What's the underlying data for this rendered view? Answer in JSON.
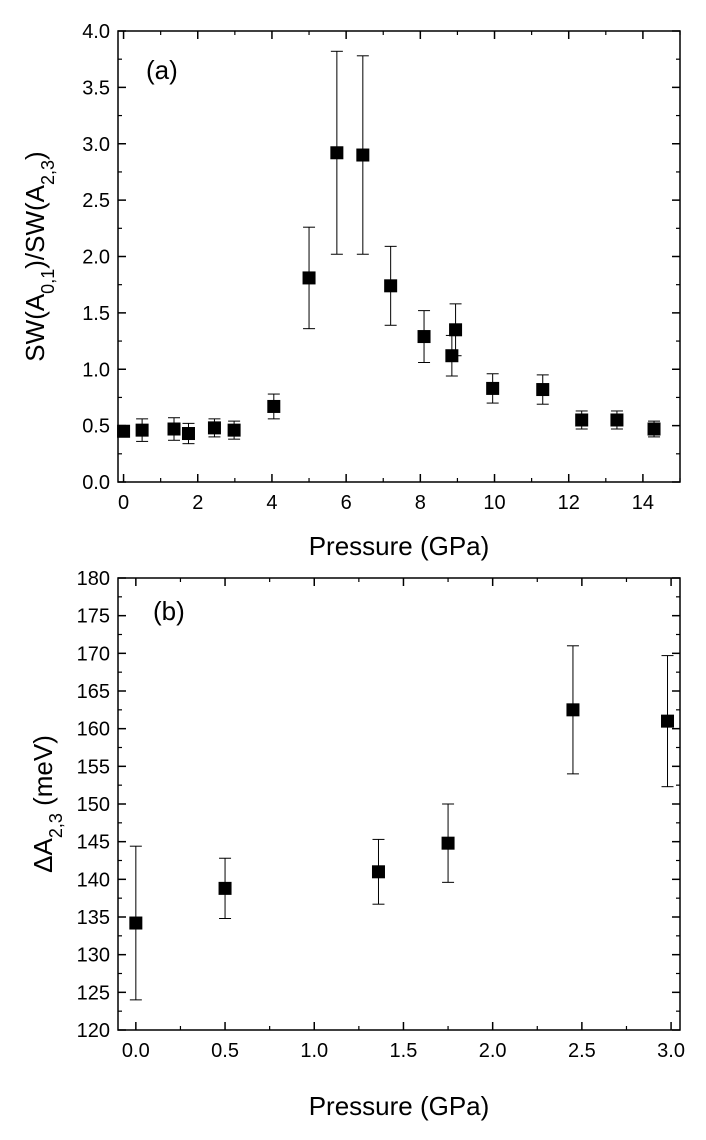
{
  "chart_data": [
    {
      "type": "scatter",
      "panel_label": "(a)",
      "xlabel": "Pressure (GPa)",
      "ylabel": {
        "pre": "SW(A",
        "sub1": "0,1",
        "mid": ")/SW(A",
        "sub2": "2,3",
        "post": ")"
      },
      "xlim": [
        -0.15,
        15.0
      ],
      "ylim": [
        0.0,
        4.0
      ],
      "xticks": [
        0,
        2,
        4,
        6,
        8,
        10,
        12,
        14
      ],
      "xtick_labels": [
        "0",
        "2",
        "4",
        "6",
        "8",
        "10",
        "12",
        "14"
      ],
      "yticks": [
        0.0,
        0.5,
        1.0,
        1.5,
        2.0,
        2.5,
        3.0,
        3.5,
        4.0
      ],
      "ytick_labels": [
        "0.0",
        "0.5",
        "1.0",
        "1.5",
        "2.0",
        "2.5",
        "3.0",
        "3.5",
        "4.0"
      ],
      "x_minor_step": 1,
      "y_minor_step": 0.25,
      "series": [
        {
          "name": "SW ratio",
          "x": [
            0.0,
            0.5,
            1.36,
            1.75,
            2.45,
            2.98,
            4.05,
            5.0,
            5.75,
            6.45,
            7.2,
            8.1,
            8.85,
            8.95,
            9.95,
            11.3,
            12.35,
            13.3,
            14.3
          ],
          "y": [
            0.45,
            0.46,
            0.47,
            0.43,
            0.48,
            0.46,
            0.67,
            1.81,
            2.92,
            2.9,
            1.74,
            1.29,
            1.12,
            1.35,
            0.83,
            0.82,
            0.55,
            0.55,
            0.47
          ],
          "err": [
            0.0,
            0.1,
            0.1,
            0.09,
            0.08,
            0.08,
            0.11,
            0.45,
            0.9,
            0.88,
            0.35,
            0.23,
            0.18,
            0.23,
            0.13,
            0.13,
            0.08,
            0.08,
            0.07
          ]
        }
      ]
    },
    {
      "type": "scatter",
      "panel_label": "(b)",
      "xlabel": "Pressure (GPa)",
      "ylabel": {
        "pre": "ΔA",
        "sub1": "2,3",
        "post": " (meV)"
      },
      "xlim": [
        -0.1,
        3.05
      ],
      "ylim": [
        120,
        180
      ],
      "xticks": [
        0.0,
        0.5,
        1.0,
        1.5,
        2.0,
        2.5,
        3.0
      ],
      "xtick_labels": [
        "0.0",
        "0.5",
        "1.0",
        "1.5",
        "2.0",
        "2.5",
        "3.0"
      ],
      "yticks": [
        120,
        125,
        130,
        135,
        140,
        145,
        150,
        155,
        160,
        165,
        170,
        175,
        180
      ],
      "ytick_labels": [
        "120",
        "125",
        "130",
        "135",
        "140",
        "145",
        "150",
        "155",
        "160",
        "165",
        "170",
        "175",
        "180"
      ],
      "x_minor_step": 0.25,
      "y_minor_step": 2.5,
      "series": [
        {
          "name": "Delta A23",
          "x": [
            0.0,
            0.5,
            1.36,
            1.75,
            2.45,
            2.98
          ],
          "y": [
            134.2,
            138.8,
            141.0,
            144.8,
            162.5,
            161.0
          ],
          "err": [
            10.2,
            4.0,
            4.3,
            5.2,
            8.5,
            8.7
          ]
        }
      ]
    }
  ]
}
